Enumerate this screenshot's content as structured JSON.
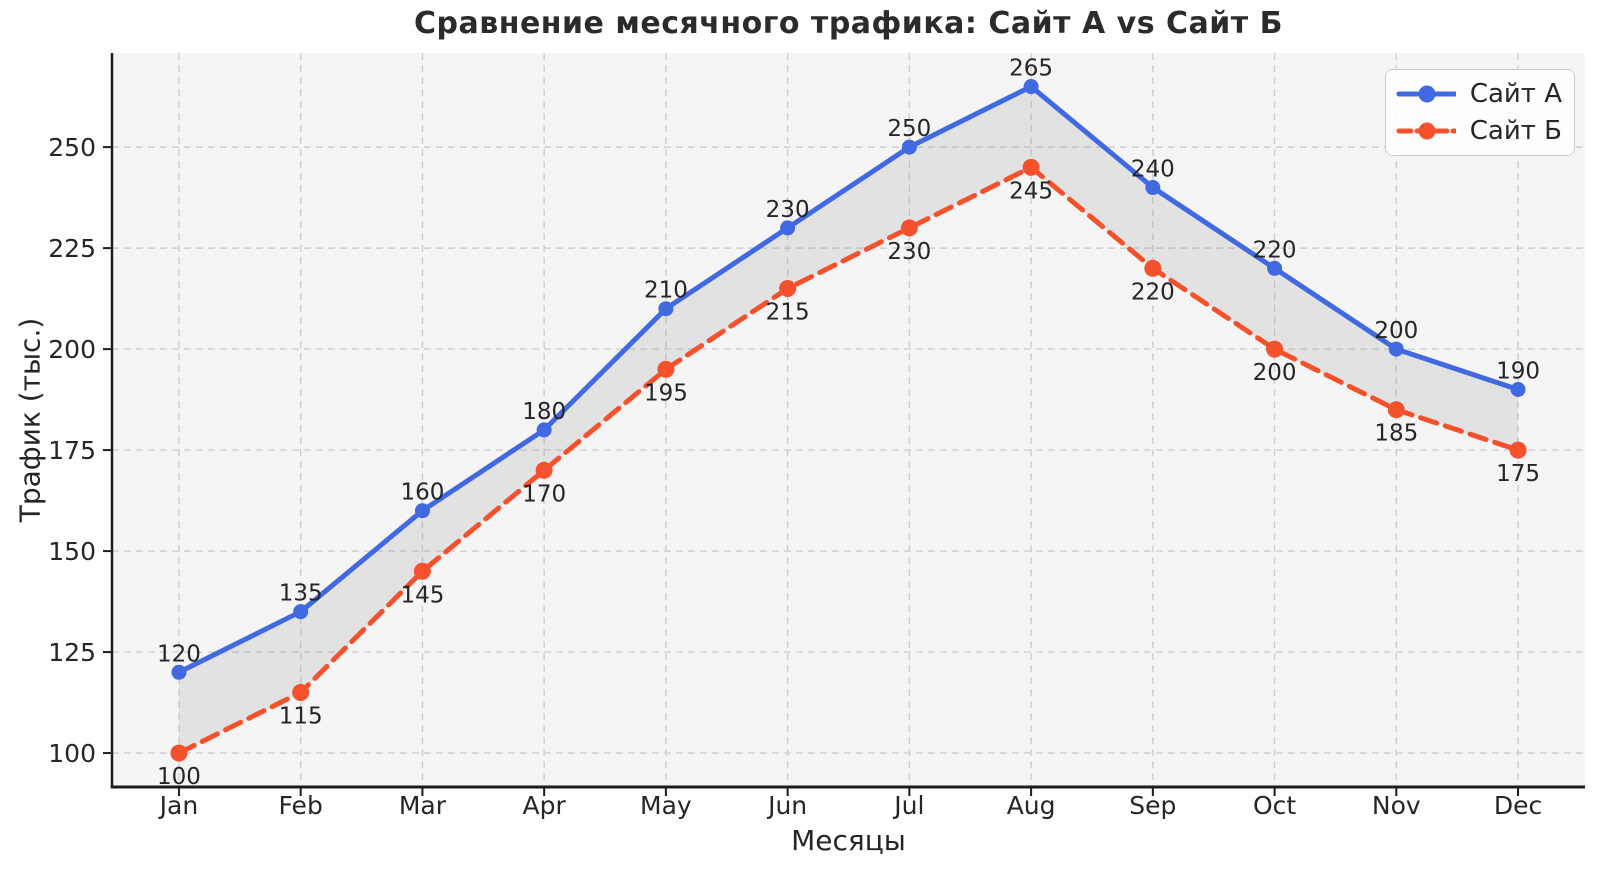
{
  "chart_data": {
    "type": "line",
    "title": "Сравнение месячного трафика: Сайт А vs Сайт Б",
    "xlabel": "Месяцы",
    "ylabel": "Трафик (тыс.)",
    "categories": [
      "Jan",
      "Feb",
      "Mar",
      "Apr",
      "May",
      "Jun",
      "Jul",
      "Aug",
      "Sep",
      "Oct",
      "Nov",
      "Dec"
    ],
    "series": [
      {
        "name": "Сайт А",
        "color": "#4169E1",
        "line_style": "solid",
        "marker": "circle",
        "data_label_position": "above",
        "values": [
          120,
          135,
          160,
          180,
          210,
          230,
          250,
          265,
          240,
          220,
          200,
          190
        ]
      },
      {
        "name": "Сайт Б",
        "color": "#F4512C",
        "line_style": "dashed",
        "marker": "circle",
        "data_label_position": "below",
        "values": [
          100,
          115,
          145,
          170,
          195,
          215,
          230,
          245,
          220,
          200,
          185,
          175
        ]
      }
    ],
    "fill_between_series": true,
    "data_labels_shown": true,
    "yticks": [
      100,
      125,
      150,
      175,
      200,
      225,
      250
    ],
    "ylim": [
      91.6,
      273.3
    ],
    "xlim": [
      -0.55,
      11.55
    ],
    "grid": "dashed",
    "legend_position": "upper right"
  },
  "colors": {
    "figure_background": "#FFFFFF",
    "plot_background": "#F5F5F5",
    "grid": "#CFCFCF",
    "spine": "#1C1C1C",
    "tick_text": "#262626",
    "data_label_text": "#262626",
    "fill_between": "#808080",
    "fill_between_opacity": 0.16,
    "legend_border": "#CCCCCC"
  }
}
